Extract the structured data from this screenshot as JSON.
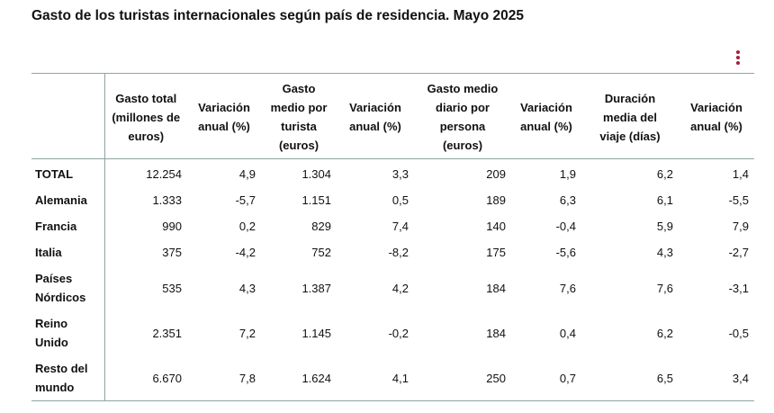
{
  "title": "Gasto de los turistas internacionales según país de residencia. Mayo 2025",
  "menu": {
    "icon": "vertical-dots-icon",
    "color": "#a0223a"
  },
  "table": {
    "columns": [
      "Gasto total (millones de euros)",
      "Variación anual (%)",
      "Gasto medio por turista (euros)",
      "Variación anual (%)",
      "Gasto medio diario por persona (euros)",
      "Variación anual (%)",
      "Duración media del viaje (días)",
      "Variación anual (%)"
    ],
    "rows": [
      {
        "label": "TOTAL",
        "values": [
          "12.254",
          "4,9",
          "1.304",
          "3,3",
          "209",
          "1,9",
          "6,2",
          "1,4"
        ]
      },
      {
        "label": "Alemania",
        "values": [
          "1.333",
          "-5,7",
          "1.151",
          "0,5",
          "189",
          "6,3",
          "6,1",
          "-5,5"
        ]
      },
      {
        "label": "Francia",
        "values": [
          "990",
          "0,2",
          "829",
          "7,4",
          "140",
          "-0,4",
          "5,9",
          "7,9"
        ]
      },
      {
        "label": "Italia",
        "values": [
          "375",
          "-4,2",
          "752",
          "-8,2",
          "175",
          "-5,6",
          "4,3",
          "-2,7"
        ]
      },
      {
        "label": "Países Nórdicos",
        "values": [
          "535",
          "4,3",
          "1.387",
          "4,2",
          "184",
          "7,6",
          "7,6",
          "-3,1"
        ]
      },
      {
        "label": "Reino Unido",
        "values": [
          "2.351",
          "7,2",
          "1.145",
          "-0,2",
          "184",
          "0,4",
          "6,2",
          "-0,5"
        ]
      },
      {
        "label": "Resto del mundo",
        "values": [
          "6.670",
          "7,8",
          "1.624",
          "4,1",
          "250",
          "0,7",
          "6,5",
          "3,4"
        ]
      }
    ]
  }
}
